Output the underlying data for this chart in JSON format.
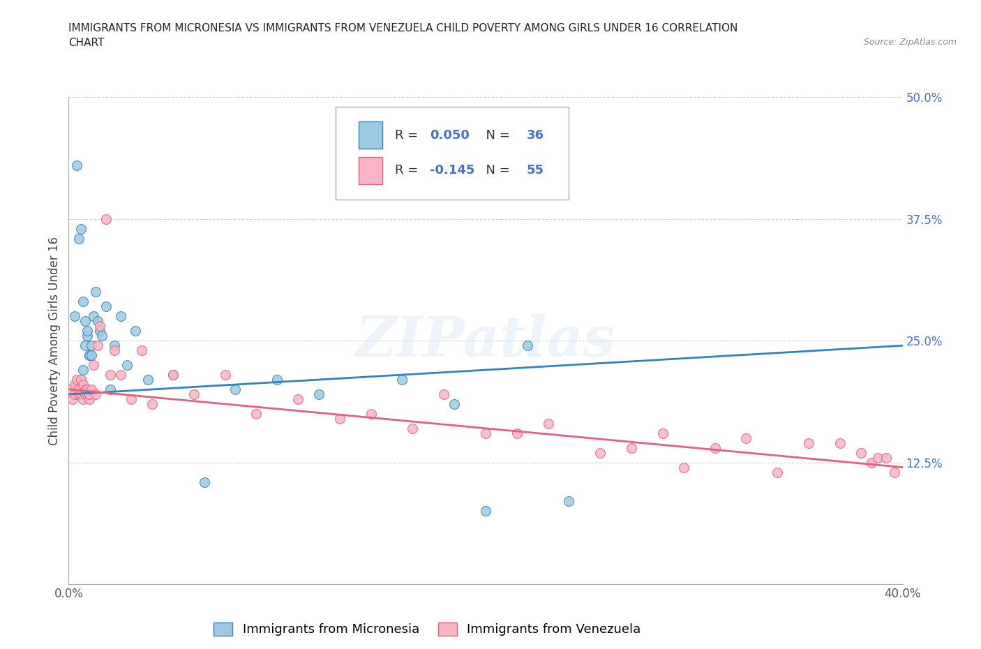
{
  "title_line1": "IMMIGRANTS FROM MICRONESIA VS IMMIGRANTS FROM VENEZUELA CHILD POVERTY AMONG GIRLS UNDER 16 CORRELATION",
  "title_line2": "CHART",
  "source": "Source: ZipAtlas.com",
  "ylabel": "Child Poverty Among Girls Under 16",
  "xlim": [
    0.0,
    0.4
  ],
  "ylim": [
    0.0,
    0.5
  ],
  "yticks": [
    0.0,
    0.125,
    0.25,
    0.375,
    0.5
  ],
  "ytick_labels": [
    "",
    "12.5%",
    "25.0%",
    "37.5%",
    "50.0%"
  ],
  "color_micronesia": "#9ecae1",
  "color_venezuela": "#fbb4c6",
  "color_trend_micronesia": "#3182bd",
  "color_trend_venezuela": "#e0607e",
  "color_text_blue": "#4472c4",
  "R_micronesia": 0.05,
  "N_micronesia": 36,
  "R_venezuela": -0.145,
  "N_venezuela": 55,
  "legend_label_micronesia": "Immigrants from Micronesia",
  "legend_label_venezuela": "Immigrants from Venezuela",
  "watermark": "ZIPatlas",
  "trend_mic_y0": 0.195,
  "trend_mic_y1": 0.245,
  "trend_ven_y0": 0.2,
  "trend_ven_y1": 0.12,
  "micronesia_x": [
    0.003,
    0.004,
    0.005,
    0.006,
    0.007,
    0.007,
    0.008,
    0.008,
    0.009,
    0.009,
    0.01,
    0.01,
    0.011,
    0.011,
    0.012,
    0.013,
    0.014,
    0.015,
    0.016,
    0.018,
    0.02,
    0.022,
    0.025,
    0.028,
    0.032,
    0.038,
    0.05,
    0.065,
    0.08,
    0.1,
    0.12,
    0.16,
    0.185,
    0.2,
    0.22,
    0.24
  ],
  "micronesia_y": [
    0.275,
    0.43,
    0.355,
    0.365,
    0.22,
    0.29,
    0.245,
    0.27,
    0.255,
    0.26,
    0.235,
    0.235,
    0.235,
    0.245,
    0.275,
    0.3,
    0.27,
    0.26,
    0.255,
    0.285,
    0.2,
    0.245,
    0.275,
    0.225,
    0.26,
    0.21,
    0.215,
    0.105,
    0.2,
    0.21,
    0.195,
    0.21,
    0.185,
    0.075,
    0.245,
    0.085
  ],
  "venezuela_x": [
    0.001,
    0.002,
    0.003,
    0.003,
    0.004,
    0.005,
    0.005,
    0.006,
    0.006,
    0.007,
    0.007,
    0.008,
    0.008,
    0.009,
    0.009,
    0.01,
    0.01,
    0.011,
    0.012,
    0.013,
    0.014,
    0.015,
    0.018,
    0.02,
    0.022,
    0.025,
    0.03,
    0.035,
    0.04,
    0.05,
    0.06,
    0.075,
    0.09,
    0.11,
    0.13,
    0.145,
    0.165,
    0.18,
    0.2,
    0.215,
    0.23,
    0.255,
    0.27,
    0.285,
    0.295,
    0.31,
    0.325,
    0.34,
    0.355,
    0.37,
    0.38,
    0.385,
    0.388,
    0.392,
    0.396
  ],
  "venezuela_y": [
    0.2,
    0.19,
    0.195,
    0.205,
    0.21,
    0.195,
    0.2,
    0.195,
    0.21,
    0.19,
    0.205,
    0.195,
    0.2,
    0.195,
    0.2,
    0.19,
    0.195,
    0.2,
    0.225,
    0.195,
    0.245,
    0.265,
    0.375,
    0.215,
    0.24,
    0.215,
    0.19,
    0.24,
    0.185,
    0.215,
    0.195,
    0.215,
    0.175,
    0.19,
    0.17,
    0.175,
    0.16,
    0.195,
    0.155,
    0.155,
    0.165,
    0.135,
    0.14,
    0.155,
    0.12,
    0.14,
    0.15,
    0.115,
    0.145,
    0.145,
    0.135,
    0.125,
    0.13,
    0.13,
    0.115
  ]
}
